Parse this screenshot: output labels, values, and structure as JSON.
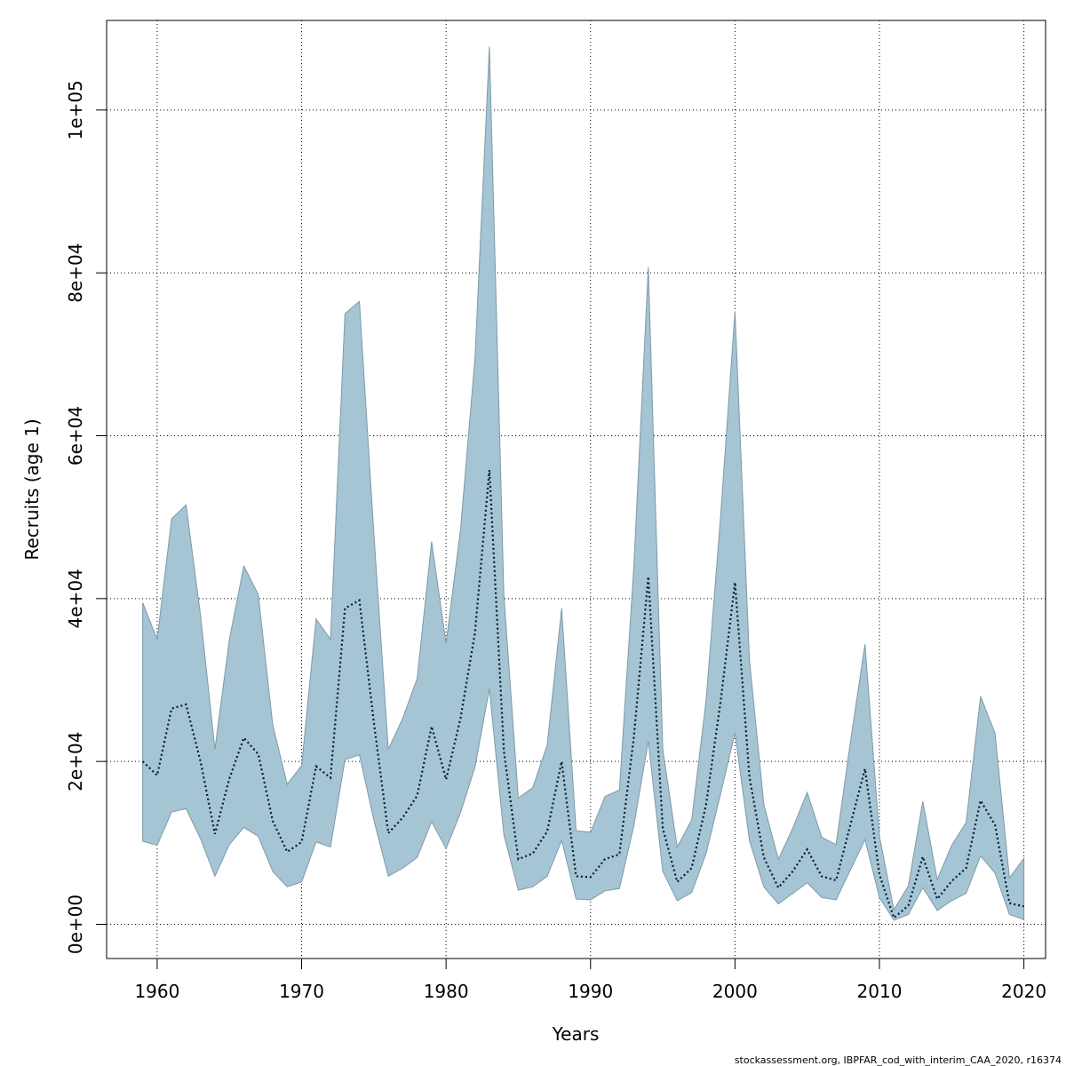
{
  "chart_data": {
    "type": "area",
    "xlabel": "Years",
    "ylabel": "Recruits (age 1)",
    "xlim": [
      1956.5,
      2021.5
    ],
    "ylim": [
      -4200,
      111000
    ],
    "xticks": [
      1960,
      1970,
      1980,
      1990,
      2000,
      2010,
      2020
    ],
    "xtick_labels": [
      "1960",
      "1970",
      "1980",
      "1990",
      "2000",
      "2010",
      "2020"
    ],
    "yticks": [
      0,
      20000,
      40000,
      60000,
      80000,
      100000
    ],
    "ytick_labels": [
      "0e+00",
      "2e+04",
      "4e+04",
      "6e+04",
      "8e+04",
      "1e+05"
    ],
    "grid": true,
    "years": [
      1959,
      1960,
      1961,
      1962,
      1963,
      1964,
      1965,
      1966,
      1967,
      1968,
      1969,
      1970,
      1971,
      1972,
      1973,
      1974,
      1975,
      1976,
      1977,
      1978,
      1979,
      1980,
      1981,
      1982,
      1983,
      1984,
      1985,
      1986,
      1987,
      1988,
      1989,
      1990,
      1991,
      1992,
      1993,
      1994,
      1995,
      1996,
      1997,
      1998,
      1999,
      2000,
      2001,
      2002,
      2003,
      2004,
      2005,
      2006,
      2007,
      2008,
      2009,
      2010,
      2011,
      2012,
      2013,
      2014,
      2015,
      2016,
      2017,
      2018,
      2019,
      2020
    ],
    "series": [
      {
        "role": "upper",
        "values": [
          39500,
          35000,
          49800,
          51500,
          38000,
          21500,
          35000,
          44000,
          40500,
          24500,
          17200,
          19500,
          37500,
          35000,
          75000,
          76500,
          48000,
          21500,
          25300,
          30200,
          47000,
          34500,
          48500,
          69500,
          107800,
          40500,
          15500,
          16800,
          22000,
          38800,
          11500,
          11300,
          15700,
          16500,
          44000,
          80700,
          21500,
          9500,
          12800,
          27500,
          50000,
          75300,
          32500,
          14700,
          8000,
          11800,
          16200,
          10700,
          9800,
          22500,
          34400,
          10800,
          1800,
          4700,
          15100,
          5500,
          9700,
          12500,
          28000,
          23500,
          5700,
          8100
        ]
      },
      {
        "role": "lower",
        "values": [
          10200,
          9700,
          13800,
          14200,
          10500,
          5900,
          9800,
          11900,
          10800,
          6500,
          4600,
          5200,
          10100,
          9500,
          20200,
          20800,
          12800,
          5900,
          6900,
          8200,
          12600,
          9300,
          13700,
          19300,
          28900,
          11000,
          4200,
          4600,
          5900,
          10300,
          3100,
          3000,
          4100,
          4400,
          12100,
          22500,
          6500,
          2900,
          3900,
          8700,
          16000,
          23500,
          10300,
          4600,
          2500,
          3800,
          5100,
          3300,
          3000,
          6700,
          10400,
          3300,
          500,
          1200,
          4500,
          1700,
          2900,
          3800,
          8400,
          6300,
          1200,
          600
        ]
      },
      {
        "role": "estimate",
        "values": [
          20000,
          18300,
          26500,
          27000,
          20000,
          11100,
          17900,
          22900,
          20900,
          12700,
          8900,
          10100,
          19400,
          18000,
          38800,
          39800,
          24800,
          11200,
          13100,
          15800,
          24300,
          17800,
          25300,
          35800,
          55800,
          21300,
          8000,
          8700,
          11400,
          20000,
          5900,
          5800,
          8000,
          8600,
          23000,
          42700,
          11800,
          5200,
          6900,
          14700,
          27300,
          42000,
          18100,
          8200,
          4500,
          6500,
          9200,
          5900,
          5400,
          12300,
          19100,
          6100,
          800,
          2300,
          8300,
          3100,
          5300,
          6900,
          15200,
          12200,
          2600,
          2200
        ]
      }
    ]
  },
  "colors": {
    "band_fill": "#a5c4d4",
    "band_stroke": "#7f9aa6",
    "estimate_line": "#001a2e",
    "grid": "#000000"
  },
  "footer": "stockassessment.org, IBPFAR_cod_with_interim_CAA_2020, r16374"
}
